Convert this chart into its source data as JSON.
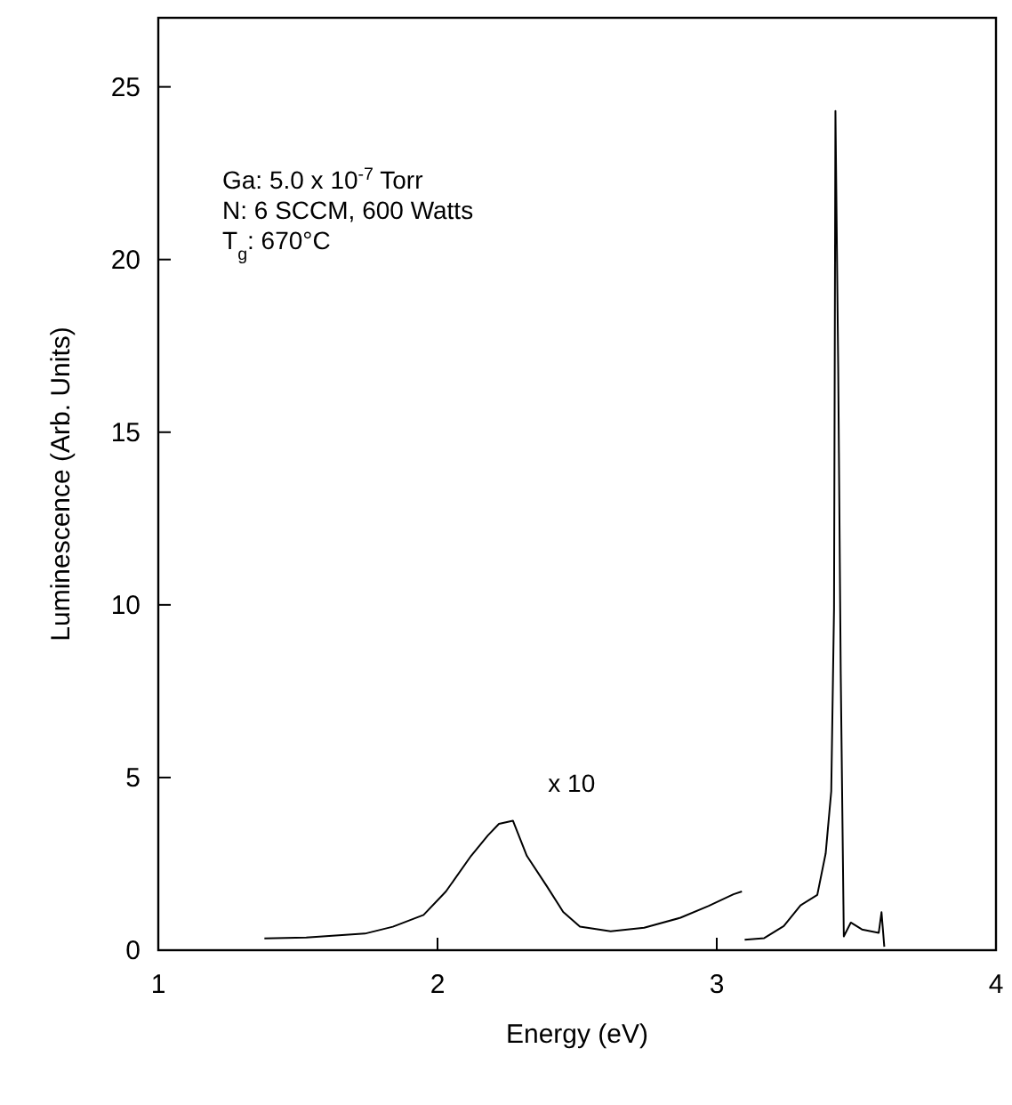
{
  "chart_data": {
    "type": "line",
    "xlabel": "Energy (eV)",
    "ylabel": "Luminescence (Arb. Units)",
    "xlim": [
      1,
      4
    ],
    "ylim": [
      0,
      27
    ],
    "xticks": [
      1,
      2,
      3,
      4
    ],
    "yticks": [
      0,
      5,
      10,
      15,
      20,
      25
    ],
    "grid": false,
    "marker": "none",
    "line_style": "solid",
    "series": [
      {
        "color": "#000000",
        "x": [
          1.38,
          1.53,
          1.74,
          1.84,
          1.95,
          2.03,
          2.12,
          2.18,
          2.22,
          2.27,
          2.32,
          2.39,
          2.45,
          2.51,
          2.62,
          2.74,
          2.87,
          2.97,
          3.06,
          3.09
        ],
        "values": [
          0.34,
          0.37,
          0.48,
          0.68,
          1.02,
          1.7,
          2.73,
          3.32,
          3.66,
          3.75,
          2.73,
          1.87,
          1.11,
          0.68,
          0.55,
          0.65,
          0.94,
          1.28,
          1.62,
          1.7
        ]
      },
      {
        "color": "#000000",
        "x": [
          3.1,
          3.17,
          3.24,
          3.3,
          3.36,
          3.39,
          3.41,
          3.42,
          3.425,
          3.435,
          3.444,
          3.455,
          3.48,
          3.52,
          3.58,
          3.59,
          3.6
        ],
        "values": [
          0.3,
          0.35,
          0.7,
          1.3,
          1.6,
          2.8,
          4.6,
          9.9,
          24.3,
          16.8,
          8.0,
          0.4,
          0.8,
          0.6,
          0.5,
          1.1,
          0.1
        ]
      }
    ],
    "annotations": [
      "Ga: 5.0 x 10$^{-7}$ Torr",
      "N: 6 SCCM, 600 Watts",
      "T$_{g}$: 670°C",
      "x 10"
    ]
  }
}
